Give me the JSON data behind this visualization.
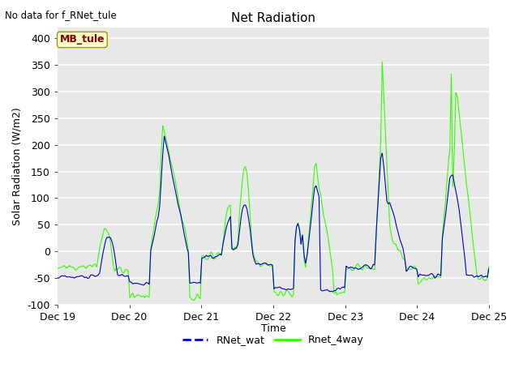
{
  "title": "Net Radiation",
  "xlabel": "Time",
  "ylabel": "Solar Radiation (W/m2)",
  "ylim": [
    -100,
    420
  ],
  "yticks": [
    -100,
    -50,
    0,
    50,
    100,
    150,
    200,
    250,
    300,
    350,
    400
  ],
  "x_tick_labels": [
    "Dec 19",
    "Dec 20",
    "Dec 21",
    "Dec 22",
    "Dec 23",
    "Dec 24",
    "Dec 25"
  ],
  "color_wat": "#0000cc",
  "color_4way": "#33ff00",
  "legend_entries": [
    "RNet_wat",
    "Rnet_4way"
  ],
  "no_data_text": "No data for f_RNet_tule",
  "station_label": "MB_tule",
  "bg_color": "#e8e8e8",
  "grid_color": "#ffffff",
  "fig_bg": "#ffffff"
}
